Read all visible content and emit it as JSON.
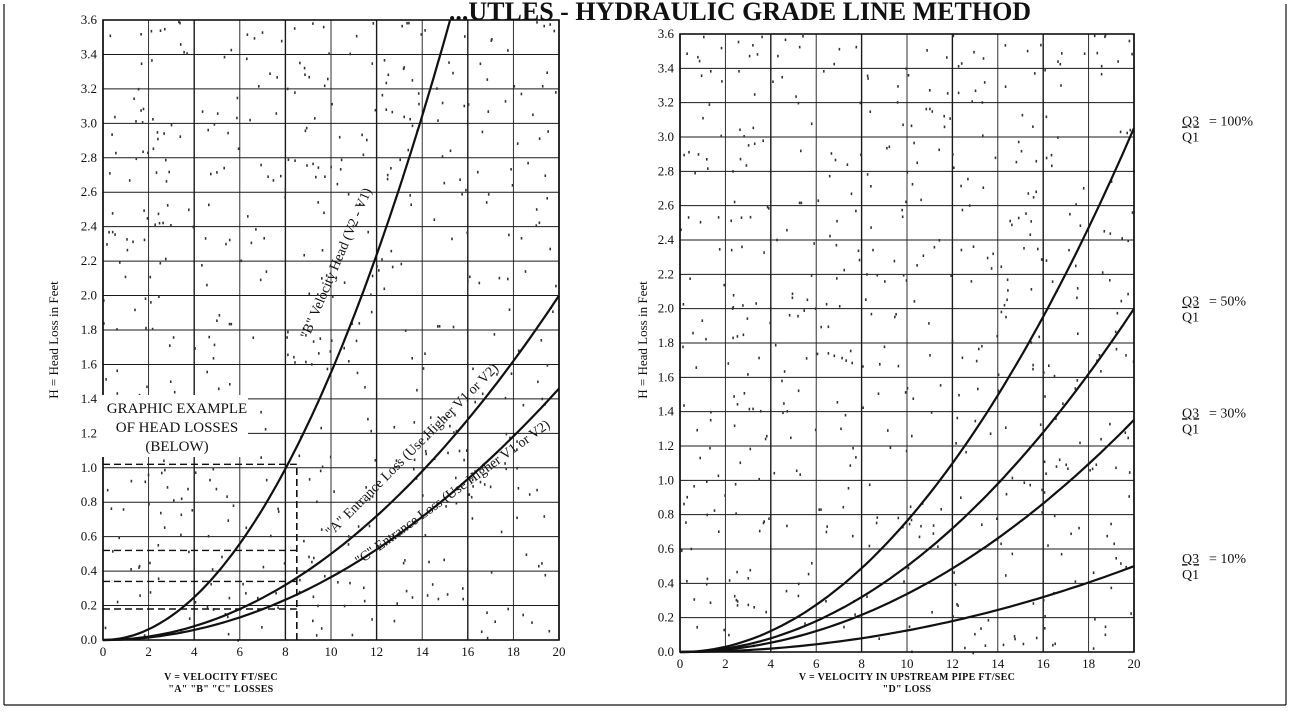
{
  "header": {
    "banner_fragment": "...UTLES - HYDRAULIC GRADE LINE METHOD"
  },
  "chart_data": [
    {
      "type": "line",
      "ylabel": "H = Head Loss in Feet",
      "xlabel_line1": "V = VELOCITY FT/SEC",
      "xlabel_line2": "\"A\" \"B\" \"C\" LOSSES",
      "xlim": [
        0,
        20
      ],
      "ylim": [
        0,
        3.6
      ],
      "x_ticks": [
        "0",
        "2",
        "4",
        "6",
        "8",
        "10",
        "12",
        "14",
        "16",
        "18",
        "20"
      ],
      "y_ticks": [
        "0.0",
        "0.2",
        "0.4",
        "0.6",
        "0.8",
        "1.0",
        "1.2",
        "1.4",
        "1.6",
        "1.8",
        "2.0",
        "2.2",
        "2.4",
        "2.6",
        "2.8",
        "3.0",
        "3.2",
        "3.4",
        "3.6"
      ],
      "grid": true,
      "series": [
        {
          "name": "\"B\" Velocity Head (V2 - V1)",
          "coef": 0.01553,
          "x": [
            0,
            2,
            4,
            6,
            8,
            10,
            12,
            14,
            15.2
          ],
          "y": [
            0,
            0.06,
            0.25,
            0.56,
            0.99,
            1.55,
            2.24,
            3.04,
            3.59
          ]
        },
        {
          "name": "\"A\" Entrance Loss (Use Higher V1 or V2)",
          "coef": 0.005,
          "x": [
            0,
            4,
            8,
            12,
            16,
            20
          ],
          "y": [
            0,
            0.08,
            0.32,
            0.72,
            1.28,
            2.0
          ]
        },
        {
          "name": "\"C\" Entrance Loss (Use Higher V1 or V2)",
          "coef": 0.00365,
          "x": [
            0,
            4,
            8,
            12,
            16,
            20
          ],
          "y": [
            0,
            0.06,
            0.23,
            0.53,
            0.93,
            1.46
          ]
        }
      ],
      "annotation": {
        "lines": [
          "GRAPHIC EXAMPLE",
          "OF HEAD LOSSES",
          "(BELOW)"
        ]
      },
      "example": {
        "x": 8.5,
        "ys": [
          1.02,
          0.52,
          0.34,
          0.18
        ]
      }
    },
    {
      "type": "line",
      "ylabel": "H = Head Loss in Feet",
      "xlabel_line1": "V = VELOCITY IN UPSTREAM PIPE FT/SEC",
      "xlabel_line2": "\"D\" LOSS",
      "xlim": [
        0,
        20
      ],
      "ylim": [
        0,
        3.6
      ],
      "x_ticks": [
        "0",
        "2",
        "4",
        "6",
        "8",
        "10",
        "12",
        "14",
        "16",
        "18",
        "20"
      ],
      "y_ticks": [
        "0.0",
        "0.2",
        "0.4",
        "0.6",
        "0.8",
        "1.0",
        "1.2",
        "1.4",
        "1.6",
        "1.8",
        "2.0",
        "2.2",
        "2.4",
        "2.6",
        "2.8",
        "3.0",
        "3.2",
        "3.4",
        "3.6"
      ],
      "grid": true,
      "series": [
        {
          "name": "Q3/Q1 = 100%",
          "coef": 0.00763,
          "x": [
            0,
            4,
            8,
            12,
            16,
            20
          ],
          "y": [
            0,
            0.12,
            0.49,
            1.1,
            1.95,
            3.05
          ]
        },
        {
          "name": "Q3/Q1 = 50%",
          "coef": 0.005,
          "x": [
            0,
            4,
            8,
            12,
            16,
            20
          ],
          "y": [
            0,
            0.08,
            0.32,
            0.72,
            1.28,
            2.0
          ]
        },
        {
          "name": "Q3/Q1 = 30%",
          "coef": 0.00338,
          "x": [
            0,
            4,
            8,
            12,
            16,
            20
          ],
          "y": [
            0,
            0.05,
            0.22,
            0.49,
            0.87,
            1.35
          ]
        },
        {
          "name": "Q3/Q1 = 10%",
          "coef": 0.00125,
          "x": [
            0,
            4,
            8,
            12,
            16,
            20
          ],
          "y": [
            0,
            0.02,
            0.08,
            0.18,
            0.32,
            0.5
          ]
        }
      ],
      "ratio_labels": [
        {
          "num": "Q3",
          "eq": "= 100%",
          "den": "Q1",
          "at_y": 3.05
        },
        {
          "num": "Q3",
          "eq": "= 50%",
          "den": "Q1",
          "at_y": 2.0
        },
        {
          "num": "Q3",
          "eq": "= 30%",
          "den": "Q1",
          "at_y": 1.35
        },
        {
          "num": "Q3",
          "eq": "= 10%",
          "den": "Q1",
          "at_y": 0.5
        }
      ]
    }
  ],
  "colors": {
    "ink": "#111111",
    "grid": "#1a1a1a",
    "paper": "#ffffff"
  }
}
